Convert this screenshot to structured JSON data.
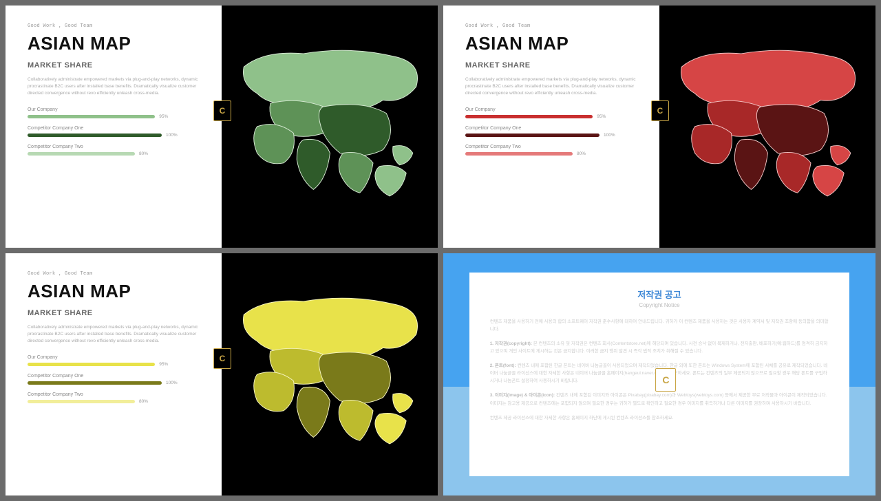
{
  "common": {
    "tagline": "Good Work , Good Team",
    "title": "ASIAN MAP",
    "subtitle": "MARKET SHARE",
    "description": "Collaboratively administrate empowered markets via plug-and-play networks, dynamic procrastinate B2C users after installed base benefits. Dramatically visualize customer directed convergence without revo efficiently unleash cross-media.",
    "bars": [
      {
        "label": "Our Company",
        "pct": 95,
        "pct_label": "95%"
      },
      {
        "label": "Competitor Company One",
        "pct": 100,
        "pct_label": "100%"
      },
      {
        "label": "Competitor Company Two",
        "pct": 80,
        "pct_label": "80%"
      }
    ],
    "bar_track_max_width": 195,
    "logo_letter": "C"
  },
  "slides": [
    {
      "theme": "green",
      "bar_colors": [
        "#8fc18a",
        "#2f5b2a",
        "#b7d9b3"
      ],
      "map_colors": {
        "light": "#8fc18a",
        "mid": "#5e9257",
        "dark": "#2f5b2a",
        "stroke": "#d7ead4"
      }
    },
    {
      "theme": "red",
      "bar_colors": [
        "#c92f2f",
        "#5a1414",
        "#e57a7a"
      ],
      "map_colors": {
        "light": "#d64545",
        "mid": "#a82828",
        "dark": "#5a1414",
        "stroke": "#f3c6c6"
      }
    },
    {
      "theme": "yellow",
      "bar_colors": [
        "#e8e24a",
        "#7a7a1a",
        "#f2ee9a"
      ],
      "map_colors": {
        "light": "#e8e24a",
        "mid": "#bdbb2e",
        "dark": "#7a7a1a",
        "stroke": "#f6f4c0"
      }
    }
  ],
  "copyright": {
    "title": "저작권 공고",
    "subtitle": "Copyright Notice",
    "paragraphs": [
      "컨텐츠 제품을 사용하기 전에 사용의 합의 소프트웨어 저작권 준수사항에 대하여 안내드립니다. 귀하가 이 컨텐츠 제품을 사용하는 것은 사용자 계약서 및 저작권 조항에 동의함을 의미합니다.",
      "1. 저작권(copyright): 본 컨텐츠의 소유 및 저작권은 컨텐츠 회사(Contentstore.net)에 해당되며 있습니다. 사전 승낙 없이 복제하거나, 전자출판, 배포하기(예:웹하드)를 엄격히 금지하고 있으며 개인 사이트에 게시하는 것은 금지합니다. 이러한 금지 행위 발견 시 즉각 법적 조치가 취해질 수 있습니다.",
      "2. 폰트(font): 컨텐츠 내에 포함된 한글 폰트는 네이버 나눔글꼴이 사용되었으며 제작되었습니다. 한글 외에 또한 폰트는 Windows System에 포함된 서체를 공유로 제작되었습니다. 네이버 나눔글꼴 라이선스에 대한 자세한 사항은 네이버 나눔글꼴 홈페이지(hangeul.naver.com)을 참조하세요. 폰트는 컨텐츠의 일부 제공되지 않으므로 필요할 경우 해당 폰트를 구입하시거나 나눔폰트 설정하여 사용하시기 바랍니다.",
      "3. 이미지(image) & 아이콘(icon): 컨텐츠 내에 포함된 이미지와 아이콘은 Pixabay(pixabay.com)과 Webtoys(webtoys.com) 등에서 제공한 무료 저작물과 아이콘이 제작되었습니다. 이미지는 참고용 제공으로 컨텐츠에는 포함되지 않으며 필요한 경우는 귀하가 별도로 확인하고 필요한 경우 이미지를 취득하거나 다른 이미지를 권장하며 사용하시기 바랍니다.",
      "컨텐츠 제공 라이선스에 대한 자세한 사항은 홈페이지 하단에 게시된 컨텐츠 라이선스를 참조하세요."
    ],
    "bg_color": "#46a3f0",
    "panel_color": "#ffffff"
  }
}
